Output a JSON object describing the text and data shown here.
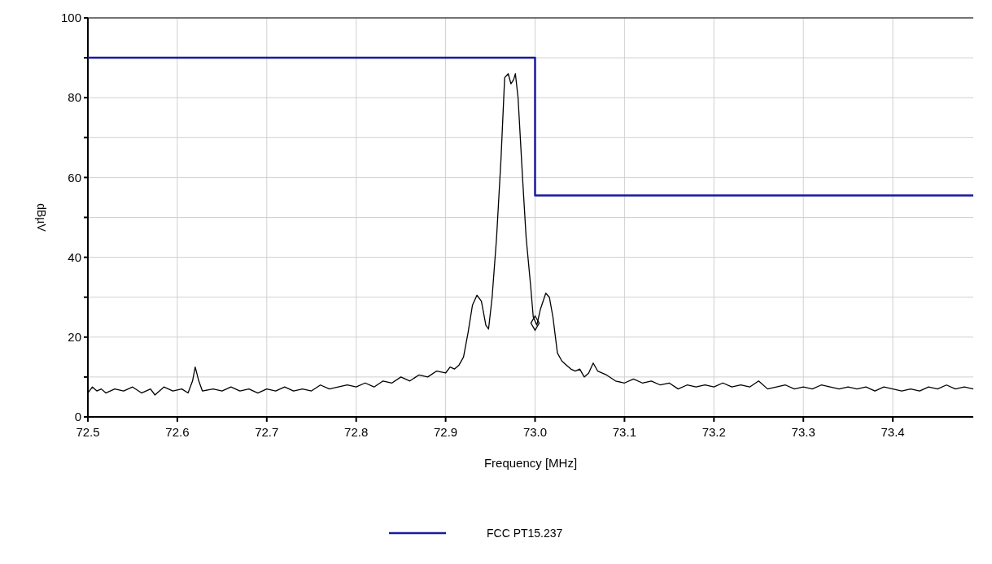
{
  "chart_data": {
    "type": "line",
    "xlabel": "Frequency [MHz]",
    "ylabel": "dBµV",
    "xlim": [
      72.5,
      73.49
    ],
    "xticks": [
      {
        "value": 72.5,
        "label": "72.5"
      },
      {
        "value": 72.6,
        "label": "72.6"
      },
      {
        "value": 72.7,
        "label": "72.7"
      },
      {
        "value": 72.8,
        "label": "72.8"
      },
      {
        "value": 72.9,
        "label": "72.9"
      },
      {
        "value": 73.0,
        "label": "73.0"
      },
      {
        "value": 73.1,
        "label": "73.1"
      },
      {
        "value": 73.2,
        "label": "73.2"
      },
      {
        "value": 73.3,
        "label": "73.3"
      },
      {
        "value": 73.4,
        "label": "73.4"
      }
    ],
    "ylim": [
      0,
      100
    ],
    "yticks": [
      0,
      {
        "value": 10,
        "label": null
      },
      20,
      {
        "value": 30,
        "label": null
      },
      40,
      {
        "value": 50,
        "label": null
      },
      60,
      {
        "value": 70,
        "label": null
      },
      80,
      {
        "value": 90,
        "label": null
      },
      100
    ],
    "grid": true,
    "legend": "bottom",
    "line_style": "solid",
    "series": [
      {
        "color": "#000000",
        "x": [
          72.5,
          72.505,
          72.51,
          72.515,
          72.52,
          72.53,
          72.54,
          72.55,
          72.56,
          72.57,
          72.575,
          72.585,
          72.595,
          72.605,
          72.612,
          72.617,
          72.62,
          72.624,
          72.628,
          72.64,
          72.65,
          72.66,
          72.67,
          72.68,
          72.69,
          72.7,
          72.71,
          72.72,
          72.73,
          72.74,
          72.75,
          72.76,
          72.77,
          72.78,
          72.79,
          72.8,
          72.81,
          72.82,
          72.83,
          72.84,
          72.85,
          72.86,
          72.87,
          72.88,
          72.89,
          72.9,
          72.905,
          72.91,
          72.915,
          72.92,
          72.925,
          72.93,
          72.935,
          72.94,
          72.945,
          72.948,
          72.952,
          72.957,
          72.962,
          72.966,
          72.97,
          72.973,
          72.976,
          72.978,
          72.981,
          72.986,
          72.99,
          72.995,
          72.998,
          73.002,
          73.006,
          73.012,
          73.016,
          73.02,
          73.025,
          73.03,
          73.035,
          73.04,
          73.045,
          73.05,
          73.055,
          73.06,
          73.065,
          73.07,
          73.08,
          73.09,
          73.1,
          73.11,
          73.12,
          73.13,
          73.14,
          73.15,
          73.16,
          73.17,
          73.18,
          73.19,
          73.2,
          73.21,
          73.22,
          73.23,
          73.24,
          73.25,
          73.26,
          73.27,
          73.28,
          73.29,
          73.3,
          73.31,
          73.32,
          73.33,
          73.34,
          73.35,
          73.36,
          73.37,
          73.38,
          73.39,
          73.4,
          73.41,
          73.42,
          73.43,
          73.44,
          73.45,
          73.46,
          73.47,
          73.48,
          73.49
        ],
        "values": [
          6,
          7.5,
          6.5,
          7,
          6,
          7,
          6.5,
          7.5,
          6,
          7,
          5.5,
          7.5,
          6.5,
          7,
          6,
          9,
          12.5,
          9,
          6.5,
          7,
          6.5,
          7.5,
          6.5,
          7,
          6,
          7,
          6.5,
          7.5,
          6.5,
          7,
          6.5,
          8,
          7,
          7.5,
          8,
          7.5,
          8.5,
          7.5,
          9,
          8.5,
          10,
          9,
          10.5,
          10,
          11.5,
          11,
          12.5,
          12,
          13,
          15,
          21,
          28,
          30.5,
          29,
          23,
          22,
          30,
          45,
          65,
          85,
          86,
          83.5,
          84.5,
          86,
          80,
          60,
          45,
          33,
          25,
          23,
          27,
          31,
          30,
          25,
          16,
          14,
          13,
          12,
          11.5,
          12,
          10,
          11,
          13.5,
          11.5,
          10.5,
          9,
          8.5,
          9.5,
          8.5,
          9,
          8,
          8.5,
          7,
          8,
          7.5,
          8,
          7.5,
          8.5,
          7.5,
          8,
          7.5,
          9,
          7,
          7.5,
          8,
          7,
          7.5,
          7,
          8,
          7.5,
          7,
          7.5,
          7,
          7.5,
          6.5,
          7.5,
          7,
          6.5,
          7,
          6.5,
          7.5,
          7,
          8,
          7,
          7.5,
          7
        ]
      },
      {
        "name": "FCC PT15.237",
        "color": "#1a1aa0",
        "x": [
          72.5,
          73.0,
          73.0,
          73.49
        ],
        "values": [
          90,
          90,
          55.5,
          55.5
        ]
      },
      {
        "type": "scatter",
        "marker": "diamond",
        "color": "#000000",
        "x": [
          73.0
        ],
        "values": [
          23.5
        ]
      }
    ]
  }
}
